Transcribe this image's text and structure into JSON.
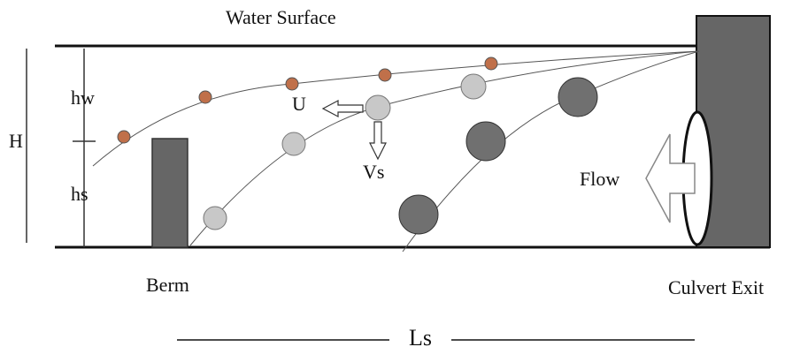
{
  "labels": {
    "water_surface": "Water Surface",
    "H": "H",
    "hw": "hw",
    "hs": "hs",
    "U": "U",
    "Vs": "Vs",
    "flow": "Flow",
    "berm": "Berm",
    "culvert_exit": "Culvert Exit",
    "Ls": "Ls"
  }
}
